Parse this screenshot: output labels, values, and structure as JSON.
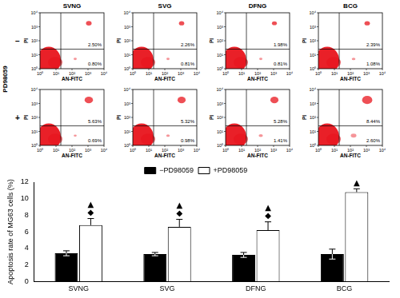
{
  "flow_cytometry": {
    "columns": [
      "SVNG",
      "SVG",
      "DFNG",
      "BCG"
    ],
    "row_title": "PD98059",
    "x_label": "AN-FITC",
    "y_label": "PI",
    "log": true,
    "xlim": [
      1,
      10000
    ],
    "ylim": [
      1,
      10000
    ],
    "xticks": [
      {
        "value": 1,
        "label": "10⁰"
      },
      {
        "value": 10,
        "label": "10¹"
      },
      {
        "value": 100,
        "label": "10²"
      },
      {
        "value": 1000,
        "label": "10³"
      },
      {
        "value": 10000,
        "label": "10⁴"
      }
    ],
    "yticks": [
      {
        "value": 1,
        "label": "10⁰"
      },
      {
        "value": 10,
        "label": "10¹"
      },
      {
        "value": 100,
        "label": "10²"
      },
      {
        "value": 1000,
        "label": "10³"
      },
      {
        "value": 10000,
        "label": "10⁴"
      }
    ],
    "gate_x": 20,
    "gate_y": 25,
    "color": "#e8141c",
    "rows": [
      {
        "label": "−",
        "upper_right": [
          2.5,
          2.26,
          1.98,
          2.39
        ],
        "upper_right_labels": [
          "2.50%",
          "2.26%",
          "1.98%",
          "2.39%"
        ],
        "lower_right": [
          0.8,
          0.81,
          0.81,
          1.08
        ],
        "lower_right_labels": [
          "0.80%",
          "0.81%",
          "0.81%",
          "1.08%"
        ]
      },
      {
        "label": "+",
        "upper_right": [
          5.63,
          5.32,
          5.28,
          8.44
        ],
        "upper_right_labels": [
          "5.63%",
          "5.32%",
          "5.28%",
          "8.44%"
        ],
        "lower_right": [
          0.69,
          0.98,
          1.41,
          2.6
        ],
        "lower_right_labels": [
          "0.69%",
          "0.98%",
          "1.41%",
          "2.60%"
        ]
      }
    ]
  },
  "chart_data": {
    "type": "bar",
    "categories": [
      "SVNG",
      "SVG",
      "DFNG",
      "BCG"
    ],
    "y_label": "Apoptosis rate of MG63 cells (%)",
    "ylim": [
      0,
      12
    ],
    "yticks": [
      0,
      2,
      4,
      6,
      8,
      10,
      12
    ],
    "grid": false,
    "legend": "top",
    "series": [
      {
        "name": "−PD98059",
        "color": "#000000",
        "values": [
          3.4,
          3.3,
          3.2,
          3.3
        ],
        "errors": [
          0.3,
          0.2,
          0.3,
          0.6
        ]
      },
      {
        "name": "+PD98059",
        "color": "#ffffff",
        "values": [
          6.8,
          6.6,
          6.2,
          10.8
        ],
        "errors": [
          0.8,
          0.9,
          1.0,
          0.4
        ],
        "annotations": [
          [
            "▲",
            "◆"
          ],
          [
            "▲",
            "◆"
          ],
          [
            "▲",
            "◆"
          ],
          [
            "▲"
          ]
        ]
      }
    ]
  }
}
